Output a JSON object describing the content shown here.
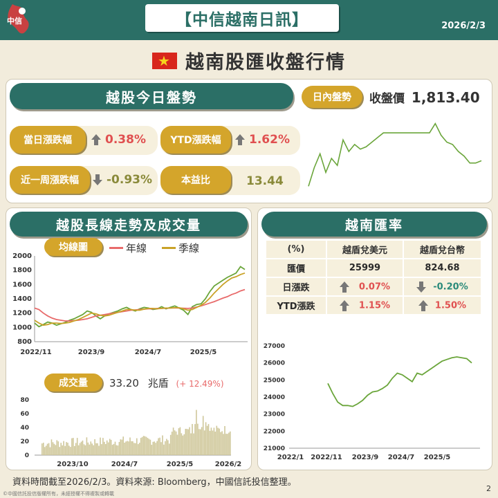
{
  "header": {
    "logo_text": "中信",
    "title": "【中信越南日訊】",
    "date": "2026/2/3"
  },
  "heading": "越南股匯收盤行情",
  "today": {
    "title": "越股今日盤勢",
    "intraday_label": "日內盤勢",
    "close_label": "收盤價",
    "close_value": "1,813.40",
    "metrics": [
      {
        "label": "當日漲跌幅",
        "value": "0.38%",
        "dir": "up"
      },
      {
        "label": "YTD漲跌幅",
        "value": "1.62%",
        "dir": "up"
      },
      {
        "label": "近一周漲跌幅",
        "value": "-0.93%",
        "dir": "down"
      },
      {
        "label": "本益比",
        "value": "13.44",
        "dir": "none"
      }
    ]
  },
  "longterm": {
    "title": "越股長線走勢及成交量",
    "ma_label": "均線圖",
    "legend": [
      {
        "name": "年線",
        "color": "#e86a6a"
      },
      {
        "name": "季線",
        "color": "#c9a227"
      }
    ],
    "volume_label": "成交量",
    "volume_value": "33.20",
    "volume_unit": "兆盾",
    "volume_change": "(+ 12.49%)"
  },
  "fx": {
    "title": "越南匯率",
    "headers": [
      "(%)",
      "越盾兌美元",
      "越盾兌台幣"
    ],
    "rows": [
      {
        "label": "匯價",
        "v1": "25999",
        "v2": "824.68",
        "d1": "none",
        "d2": "none"
      },
      {
        "label": "日漲跌",
        "v1": "0.07%",
        "v2": "-0.20%",
        "d1": "up",
        "d2": "down"
      },
      {
        "label": "YTD漲跌",
        "v1": "1.15%",
        "v2": "1.50%",
        "d1": "up",
        "d2": "up"
      }
    ]
  },
  "footer": "資料時間截至2026/2/3。資料來源: Bloomberg，中國信託投信整理。",
  "copyright": "©中國信託投信版權所有，未經授權不得複製或轉載",
  "page_number": "2",
  "chart_data": [
    {
      "type": "line",
      "title": "日內盤勢",
      "series": [
        {
          "name": "",
          "values": [
            1788,
            1796,
            1802,
            1794,
            1800,
            1797,
            1808,
            1803,
            1806,
            1804,
            1805,
            1807,
            1809,
            1811,
            1811,
            1811,
            1811,
            1811,
            1811,
            1811,
            1811,
            1811,
            1815,
            1810,
            1807,
            1806,
            1803,
            1801,
            1798,
            1798,
            1799
          ]
        }
      ]
    },
    {
      "type": "line",
      "title": "均線圖",
      "x_ticks": [
        "2022/11",
        "2023/9",
        "2024/7",
        "2025/5"
      ],
      "y_ticks": [
        800,
        1000,
        1200,
        1400,
        1600,
        1800,
        2000
      ],
      "ylim": [
        800,
        2000
      ],
      "series": [
        {
          "name": "",
          "color": "#6aa53a",
          "values": [
            1060,
            1010,
            1040,
            1075,
            1060,
            1030,
            1050,
            1070,
            1100,
            1120,
            1150,
            1180,
            1230,
            1210,
            1160,
            1120,
            1160,
            1190,
            1210,
            1230,
            1260,
            1280,
            1250,
            1230,
            1260,
            1280,
            1270,
            1250,
            1260,
            1290,
            1260,
            1280,
            1300,
            1270,
            1240,
            1180,
            1290,
            1320,
            1330,
            1400,
            1500,
            1580,
            1620,
            1660,
            1700,
            1730,
            1760,
            1850,
            1810
          ]
        },
        {
          "name": "年線",
          "color": "#e86a6a",
          "values": [
            1270,
            1250,
            1200,
            1160,
            1130,
            1110,
            1100,
            1090,
            1090,
            1095,
            1100,
            1110,
            1120,
            1140,
            1160,
            1170,
            1180,
            1190,
            1200,
            1210,
            1220,
            1230,
            1240,
            1245,
            1250,
            1255,
            1260,
            1260,
            1265,
            1265,
            1268,
            1270,
            1272,
            1270,
            1268,
            1265,
            1270,
            1285,
            1300,
            1320,
            1340,
            1360,
            1385,
            1410,
            1430,
            1460,
            1480,
            1510,
            1530
          ]
        },
        {
          "name": "季線",
          "color": "#c9a227",
          "values": [
            1100,
            1060,
            1030,
            1040,
            1060,
            1060,
            1055,
            1060,
            1070,
            1090,
            1110,
            1140,
            1170,
            1200,
            1190,
            1170,
            1160,
            1170,
            1190,
            1210,
            1230,
            1250,
            1250,
            1240,
            1240,
            1255,
            1265,
            1265,
            1260,
            1265,
            1270,
            1270,
            1275,
            1275,
            1260,
            1240,
            1250,
            1280,
            1310,
            1350,
            1410,
            1480,
            1540,
            1600,
            1650,
            1690,
            1710,
            1740,
            1760
          ]
        }
      ]
    },
    {
      "type": "bar",
      "title": "成交量",
      "x_ticks": [
        "2023/10",
        "2024/7",
        "2025/5",
        "2026/2"
      ],
      "y_ticks": [
        0,
        20,
        40,
        60,
        80
      ],
      "ylim": [
        0,
        80
      ]
    },
    {
      "type": "line",
      "title": "越南匯率",
      "x_ticks": [
        "2022/1",
        "2022/11",
        "2023/9",
        "2024/7",
        "2025/5"
      ],
      "y_ticks": [
        21000,
        22000,
        23000,
        24000,
        25000,
        26000,
        27000
      ],
      "ylim": [
        21000,
        27000
      ],
      "series": [
        {
          "name": "",
          "values": [
            24800,
            24200,
            23700,
            23500,
            23500,
            23450,
            23600,
            23800,
            24100,
            24300,
            24350,
            24500,
            24700,
            25100,
            25400,
            25300,
            25100,
            24900,
            25400,
            25300,
            25500,
            25700,
            25900,
            26100,
            26200,
            26300,
            26350,
            26300,
            26250,
            26000
          ]
        }
      ]
    }
  ]
}
